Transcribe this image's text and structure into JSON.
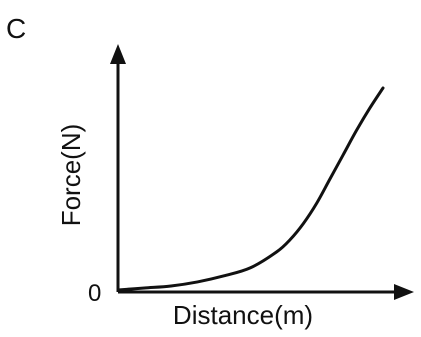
{
  "chart_data": {
    "type": "line",
    "panel_label": "C",
    "title": "",
    "xlabel": "Distance(m)",
    "ylabel": "Force(N)",
    "x_tick_labels": [],
    "y_tick_labels": [
      "0"
    ],
    "origin_label": "0",
    "xlim": [
      0,
      1
    ],
    "ylim": [
      0,
      1
    ],
    "grid": false,
    "legend": "none",
    "series": [
      {
        "x": [
          0.0,
          0.1,
          0.2,
          0.3,
          0.4,
          0.5,
          0.6,
          0.65,
          0.7,
          0.75,
          0.8,
          0.85,
          0.9,
          0.95,
          1.0
        ],
        "y": [
          0.0,
          0.01,
          0.02,
          0.04,
          0.07,
          0.11,
          0.19,
          0.25,
          0.33,
          0.43,
          0.55,
          0.67,
          0.79,
          0.9,
          1.0
        ]
      }
    ],
    "colors": {
      "line": "#111111",
      "axes": "#111111"
    }
  }
}
